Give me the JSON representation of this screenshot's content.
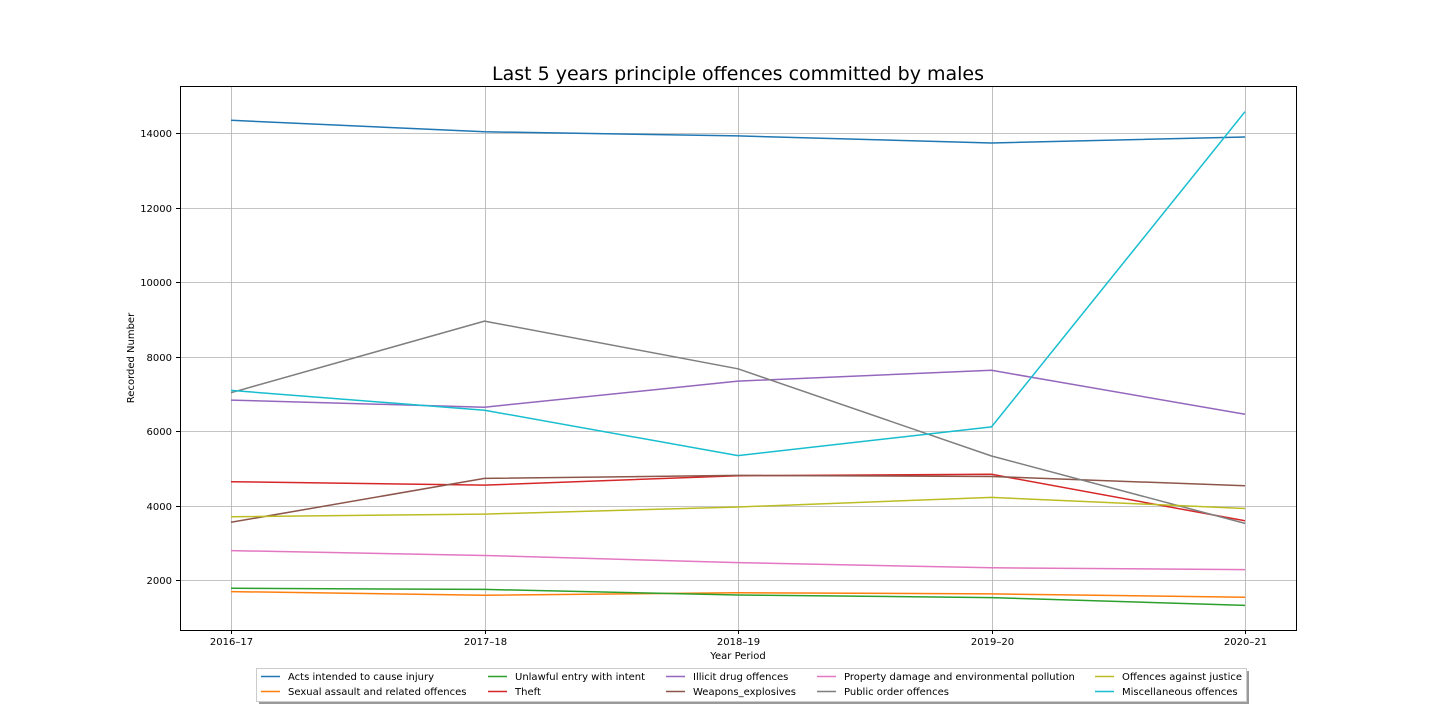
{
  "chart_data": {
    "type": "line",
    "title": "Last 5 years principle offences committed by males",
    "xlabel": "Year Period",
    "ylabel": "Recorded Number",
    "categories": [
      "2016–17",
      "2017–18",
      "2018–19",
      "2019–20",
      "2020–21"
    ],
    "yticks": [
      2000,
      4000,
      6000,
      8000,
      10000,
      12000,
      14000
    ],
    "ylim": [
      670,
      15270
    ],
    "grid": true,
    "legend_position": "bottom-center",
    "legend_columns": 5,
    "series": [
      {
        "name": "Acts intended to cause injury",
        "color": "#1f77b4",
        "values": [
          14350,
          14040,
          13930,
          13740,
          13900
        ]
      },
      {
        "name": "Sexual assault and related offences",
        "color": "#ff7f0e",
        "values": [
          1700,
          1600,
          1670,
          1640,
          1550
        ]
      },
      {
        "name": "Unlawful entry with intent",
        "color": "#2ca02c",
        "values": [
          1790,
          1760,
          1610,
          1540,
          1330
        ]
      },
      {
        "name": "Theft",
        "color": "#d62728",
        "values": [
          4650,
          4560,
          4810,
          4850,
          3600
        ]
      },
      {
        "name": "Illicit drug offences",
        "color": "#9467bd",
        "values": [
          6840,
          6650,
          7350,
          7640,
          6460
        ]
      },
      {
        "name": "Weapons_explosives",
        "color": "#8c564b",
        "values": [
          3560,
          4740,
          4820,
          4790,
          4540
        ]
      },
      {
        "name": "Property damage and environmental pollution",
        "color": "#e377c2",
        "values": [
          2800,
          2670,
          2480,
          2340,
          2290
        ]
      },
      {
        "name": "Public order offences",
        "color": "#7f7f7f",
        "values": [
          7040,
          8960,
          7680,
          5340,
          3530
        ]
      },
      {
        "name": "Offences against justice",
        "color": "#bcbd22",
        "values": [
          3710,
          3780,
          3970,
          4230,
          3930
        ]
      },
      {
        "name": "Miscellaneous offences",
        "color": "#17becf",
        "values": [
          7100,
          6570,
          5350,
          6120,
          14580
        ]
      }
    ]
  }
}
